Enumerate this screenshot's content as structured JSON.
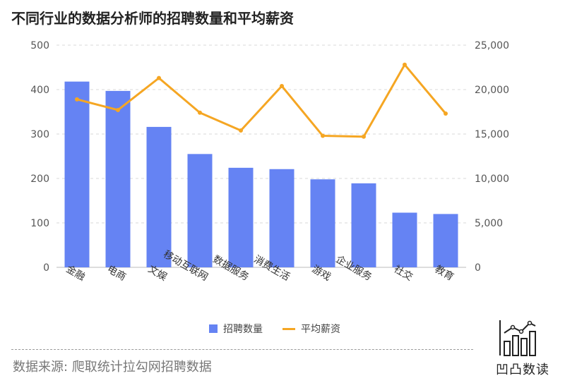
{
  "title": "不同行业的数据分析师的招聘数量和平均薪资",
  "chart_data": {
    "type": "bar",
    "categories": [
      "金融",
      "电商",
      "文娱",
      "移动互联网",
      "数据服务",
      "消费生活",
      "游戏",
      "企业服务",
      "社交",
      "教育"
    ],
    "series": [
      {
        "name": "招聘数量",
        "type": "bar",
        "axis": "left",
        "color": "#6583f3",
        "values": [
          418,
          397,
          316,
          255,
          224,
          221,
          198,
          189,
          123,
          120
        ]
      },
      {
        "name": "平均薪资",
        "type": "line",
        "axis": "right",
        "color": "#f5a623",
        "values": [
          18900,
          17700,
          21300,
          17400,
          15400,
          20400,
          14800,
          14700,
          22800,
          17300
        ]
      }
    ],
    "y_left": {
      "min": 0,
      "max": 500,
      "ticks": [
        "0",
        "100",
        "200",
        "300",
        "400",
        "500"
      ]
    },
    "y_right": {
      "min": 0,
      "max": 25000,
      "ticks": [
        "0",
        "5,000",
        "10,000",
        "15,000",
        "20,000",
        "25,000"
      ]
    },
    "grid": "dashed-horizontal",
    "legend_position": "bottom-center"
  },
  "legend": {
    "bar_label": "招聘数量",
    "line_label": "平均薪资"
  },
  "source": "数据来源: 爬取统计拉勾网招聘数据",
  "logo": {
    "text": "凹凸数读",
    "icon": "bar-line-chart-icon"
  }
}
